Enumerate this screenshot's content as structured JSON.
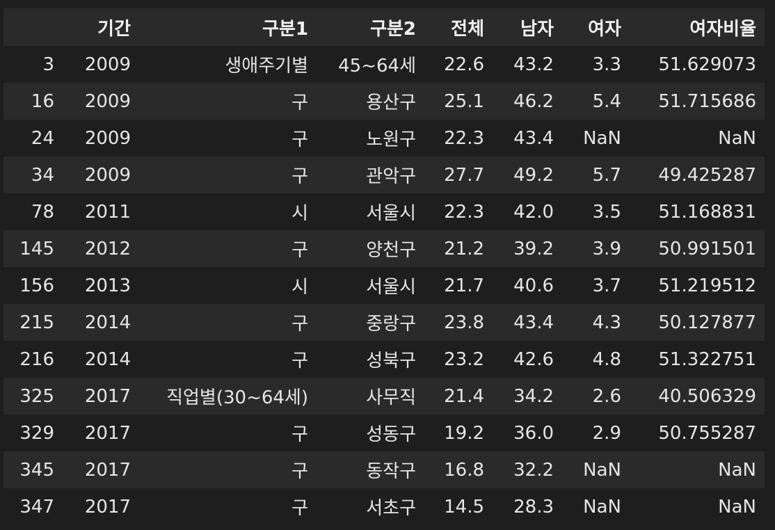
{
  "table": {
    "columns": [
      "",
      "기간",
      "구분1",
      "구분2",
      "전체",
      "남자",
      "여자",
      "여자비율"
    ],
    "rows": [
      [
        "3",
        "2009",
        "생애주기별",
        "45~64세",
        "22.6",
        "43.2",
        "3.3",
        "51.629073"
      ],
      [
        "16",
        "2009",
        "구",
        "용산구",
        "25.1",
        "46.2",
        "5.4",
        "51.715686"
      ],
      [
        "24",
        "2009",
        "구",
        "노원구",
        "22.3",
        "43.4",
        "NaN",
        "NaN"
      ],
      [
        "34",
        "2009",
        "구",
        "관악구",
        "27.7",
        "49.2",
        "5.7",
        "49.425287"
      ],
      [
        "78",
        "2011",
        "시",
        "서울시",
        "22.3",
        "42.0",
        "3.5",
        "51.168831"
      ],
      [
        "145",
        "2012",
        "구",
        "양천구",
        "21.2",
        "39.2",
        "3.9",
        "50.991501"
      ],
      [
        "156",
        "2013",
        "시",
        "서울시",
        "21.7",
        "40.6",
        "3.7",
        "51.219512"
      ],
      [
        "215",
        "2014",
        "구",
        "중랑구",
        "23.8",
        "43.4",
        "4.3",
        "50.127877"
      ],
      [
        "216",
        "2014",
        "구",
        "성북구",
        "23.2",
        "42.6",
        "4.8",
        "51.322751"
      ],
      [
        "325",
        "2017",
        "직업별(30~64세)",
        "사무직",
        "21.4",
        "34.2",
        "2.6",
        "40.506329"
      ],
      [
        "329",
        "2017",
        "구",
        "성동구",
        "19.2",
        "36.0",
        "2.9",
        "50.755287"
      ],
      [
        "345",
        "2017",
        "구",
        "동작구",
        "16.8",
        "32.2",
        "NaN",
        "NaN"
      ],
      [
        "347",
        "2017",
        "구",
        "서초구",
        "14.5",
        "28.3",
        "NaN",
        "NaN"
      ]
    ]
  },
  "colors": {
    "background": "#1e1e1e",
    "row_stripe": "#2a2a2a",
    "text": "#e6e6e6"
  }
}
